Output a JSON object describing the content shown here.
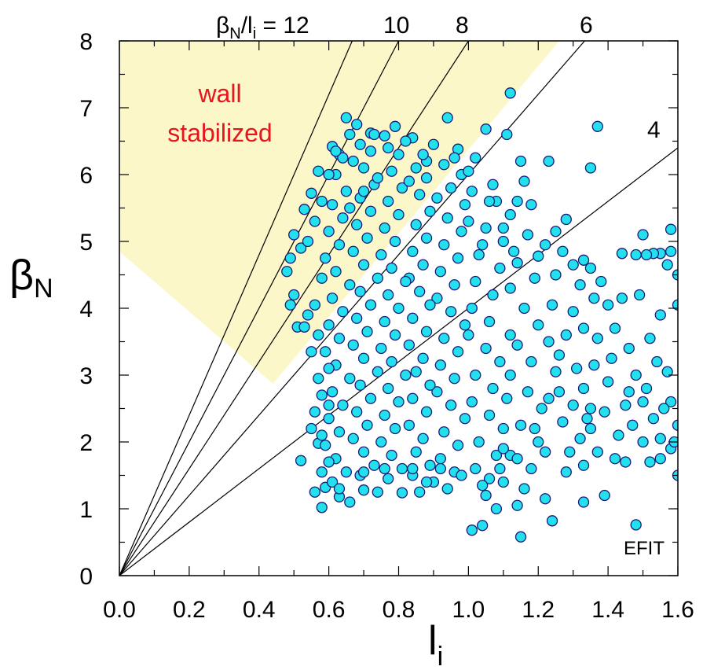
{
  "chart_data": {
    "type": "scatter",
    "xlabel": "l",
    "xlabel_sub": "i",
    "ylabel": "β",
    "ylabel_sub": "N",
    "xlim": [
      0,
      1.6
    ],
    "ylim": [
      0,
      8
    ],
    "x_ticks": [
      "0.0",
      "0.2",
      "0.4",
      "0.6",
      "0.8",
      "1.0",
      "1.2",
      "1.4",
      "1.6"
    ],
    "y_ticks": [
      "0",
      "1",
      "2",
      "3",
      "4",
      "5",
      "6",
      "7",
      "8"
    ],
    "ratio_title": {
      "beta": "β",
      "beta_sub": "N",
      "slash": "/l",
      "li_sub": "i",
      "eq": " = 12"
    },
    "ratio_lines": [
      {
        "slope": 12,
        "label": "",
        "end": [
          0.667,
          8
        ]
      },
      {
        "slope": 10,
        "label": "10",
        "end": [
          0.8,
          8
        ]
      },
      {
        "slope": 8,
        "label": "8",
        "end": [
          1.0,
          8
        ]
      },
      {
        "slope": 6,
        "label": "6",
        "end": [
          1.333,
          8
        ]
      },
      {
        "slope": 4,
        "label": "4",
        "end": [
          1.6,
          6.4
        ]
      }
    ],
    "shaded_region": {
      "label_line1": "wall",
      "label_line2": "stabilized",
      "color": "#fbf7c8",
      "polygon": [
        [
          0,
          8
        ],
        [
          1.26,
          8
        ],
        [
          0.44,
          2.87
        ],
        [
          0,
          4.85
        ]
      ]
    },
    "method_label": "EFIT",
    "marker_color": "#22e0ec",
    "marker_edge": "#1a1a7a",
    "points": [
      [
        0.65,
        6.85
      ],
      [
        0.68,
        6.75
      ],
      [
        0.72,
        6.62
      ],
      [
        0.76,
        6.58
      ],
      [
        0.79,
        6.72
      ],
      [
        0.84,
        6.55
      ],
      [
        0.9,
        6.45
      ],
      [
        0.97,
        6.38
      ],
      [
        1.02,
        6.25
      ],
      [
        1.05,
        6.68
      ],
      [
        1.11,
        6.6
      ],
      [
        1.15,
        6.2
      ],
      [
        1.12,
        7.22
      ],
      [
        1.23,
        6.2
      ],
      [
        1.37,
        6.72
      ],
      [
        1.35,
        6.1
      ],
      [
        0.94,
        6.85
      ],
      [
        0.88,
        6.2
      ],
      [
        0.85,
        6.1
      ],
      [
        0.61,
        6.42
      ],
      [
        0.63,
        6.3
      ],
      [
        0.57,
        6.05
      ],
      [
        0.55,
        5.72
      ],
      [
        0.53,
        5.48
      ],
      [
        0.5,
        5.1
      ],
      [
        0.49,
        4.75
      ],
      [
        0.52,
        4.9
      ],
      [
        0.48,
        4.55
      ],
      [
        0.5,
        4.2
      ],
      [
        0.49,
        4.05
      ],
      [
        0.51,
        3.72
      ],
      [
        0.53,
        3.72
      ],
      [
        0.55,
        3.35
      ],
      [
        0.57,
        2.95
      ],
      [
        0.58,
        2.7
      ],
      [
        0.56,
        2.45
      ],
      [
        0.55,
        2.2
      ],
      [
        0.57,
        1.98
      ],
      [
        0.52,
        1.72
      ],
      [
        0.58,
        1.55
      ],
      [
        0.56,
        1.25
      ],
      [
        0.59,
        1.32
      ],
      [
        0.58,
        1.02
      ],
      [
        0.63,
        1.18
      ],
      [
        0.66,
        1.1
      ],
      [
        0.7,
        1.28
      ],
      [
        0.74,
        1.25
      ],
      [
        0.81,
        1.24
      ],
      [
        0.86,
        1.25
      ],
      [
        1.01,
        0.68
      ],
      [
        1.04,
        0.75
      ],
      [
        1.15,
        0.58
      ],
      [
        1.24,
        0.82
      ],
      [
        1.48,
        0.76
      ],
      [
        1.08,
        1.0
      ],
      [
        1.14,
        1.05
      ],
      [
        1.22,
        1.15
      ],
      [
        1.33,
        1.1
      ],
      [
        1.39,
        1.2
      ],
      [
        1.33,
        1.65
      ],
      [
        1.37,
        1.85
      ],
      [
        1.42,
        1.75
      ],
      [
        1.45,
        1.7
      ],
      [
        1.52,
        1.7
      ],
      [
        1.55,
        1.75
      ],
      [
        1.58,
        1.9
      ],
      [
        1.6,
        1.5
      ],
      [
        1.6,
        2.25
      ],
      [
        1.58,
        2.6
      ],
      [
        1.57,
        3.05
      ],
      [
        1.54,
        3.2
      ],
      [
        1.52,
        3.55
      ],
      [
        1.55,
        3.9
      ],
      [
        1.6,
        4.05
      ],
      [
        1.6,
        4.5
      ],
      [
        1.57,
        4.65
      ],
      [
        1.58,
        4.85
      ],
      [
        1.55,
        4.82
      ],
      [
        1.53,
        4.82
      ],
      [
        1.51,
        4.8
      ],
      [
        1.48,
        4.8
      ],
      [
        1.44,
        4.82
      ],
      [
        1.58,
        5.18
      ],
      [
        1.5,
        5.1
      ],
      [
        1.49,
        4.2
      ],
      [
        1.38,
        4.4
      ],
      [
        1.4,
        4.05
      ],
      [
        1.42,
        3.7
      ],
      [
        1.37,
        3.55
      ],
      [
        1.36,
        3.15
      ],
      [
        1.4,
        2.9
      ],
      [
        1.45,
        2.55
      ],
      [
        1.47,
        2.25
      ],
      [
        1.5,
        2.0
      ],
      [
        1.43,
        2.1
      ],
      [
        1.46,
        2.75
      ],
      [
        1.48,
        3.0
      ],
      [
        1.5,
        2.6
      ],
      [
        1.53,
        2.35
      ],
      [
        1.55,
        2.05
      ],
      [
        1.35,
        2.5
      ],
      [
        1.28,
        5.33
      ],
      [
        1.25,
        5.15
      ],
      [
        1.3,
        4.65
      ],
      [
        1.33,
        4.72
      ],
      [
        1.32,
        4.35
      ],
      [
        1.25,
        4.5
      ],
      [
        1.24,
        4.05
      ],
      [
        1.3,
        3.95
      ],
      [
        1.28,
        3.6
      ],
      [
        1.26,
        3.3
      ],
      [
        1.31,
        3.1
      ],
      [
        1.33,
        2.8
      ],
      [
        1.3,
        2.55
      ],
      [
        1.27,
        2.3
      ],
      [
        1.32,
        2.05
      ],
      [
        1.29,
        1.85
      ],
      [
        1.35,
        2.2
      ],
      [
        1.17,
        5.1
      ],
      [
        1.2,
        4.78
      ],
      [
        1.14,
        4.68
      ],
      [
        1.19,
        4.45
      ],
      [
        1.12,
        4.3
      ],
      [
        1.16,
        4.0
      ],
      [
        1.2,
        3.75
      ],
      [
        1.14,
        3.45
      ],
      [
        1.18,
        3.2
      ],
      [
        1.12,
        3.0
      ],
      [
        1.17,
        2.75
      ],
      [
        1.21,
        2.5
      ],
      [
        1.15,
        2.25
      ],
      [
        1.2,
        2.0
      ],
      [
        1.12,
        1.8
      ],
      [
        1.18,
        1.6
      ],
      [
        1.1,
        1.4
      ],
      [
        1.16,
        1.3
      ],
      [
        1.05,
        1.2
      ],
      [
        1.08,
        5.6
      ],
      [
        1.12,
        5.4
      ],
      [
        1.05,
        5.2
      ],
      [
        1.1,
        5.0
      ],
      [
        1.03,
        4.8
      ],
      [
        1.09,
        4.6
      ],
      [
        1.02,
        4.4
      ],
      [
        1.07,
        4.2
      ],
      [
        1.01,
        4.0
      ],
      [
        1.06,
        3.8
      ],
      [
        1.0,
        3.6
      ],
      [
        1.05,
        3.4
      ],
      [
        1.09,
        3.2
      ],
      [
        1.02,
        3.0
      ],
      [
        1.07,
        2.8
      ],
      [
        1.01,
        2.6
      ],
      [
        1.06,
        2.4
      ],
      [
        1.1,
        2.2
      ],
      [
        1.03,
        2.0
      ],
      [
        1.08,
        1.8
      ],
      [
        1.02,
        1.6
      ],
      [
        1.06,
        1.45
      ],
      [
        1.1,
        1.9
      ],
      [
        1.11,
        2.65
      ],
      [
        1.12,
        3.6
      ],
      [
        0.98,
        6.0
      ],
      [
        0.95,
        5.8
      ],
      [
        0.99,
        5.55
      ],
      [
        0.94,
        5.35
      ],
      [
        0.98,
        5.15
      ],
      [
        0.93,
        4.95
      ],
      [
        0.97,
        4.75
      ],
      [
        0.92,
        4.55
      ],
      [
        0.96,
        4.35
      ],
      [
        0.91,
        4.15
      ],
      [
        0.95,
        3.95
      ],
      [
        0.99,
        3.75
      ],
      [
        0.93,
        3.55
      ],
      [
        0.97,
        3.35
      ],
      [
        0.92,
        3.15
      ],
      [
        0.96,
        2.95
      ],
      [
        0.91,
        2.75
      ],
      [
        0.95,
        2.55
      ],
      [
        0.99,
        2.35
      ],
      [
        0.93,
        2.15
      ],
      [
        0.97,
        1.95
      ],
      [
        0.92,
        1.75
      ],
      [
        0.96,
        1.55
      ],
      [
        0.9,
        1.4
      ],
      [
        0.94,
        1.3
      ],
      [
        0.88,
        5.95
      ],
      [
        0.86,
        5.7
      ],
      [
        0.89,
        5.45
      ],
      [
        0.85,
        5.25
      ],
      [
        0.88,
        5.05
      ],
      [
        0.84,
        4.85
      ],
      [
        0.87,
        4.65
      ],
      [
        0.83,
        4.45
      ],
      [
        0.86,
        4.25
      ],
      [
        0.89,
        4.05
      ],
      [
        0.84,
        3.85
      ],
      [
        0.88,
        3.65
      ],
      [
        0.83,
        3.45
      ],
      [
        0.87,
        3.25
      ],
      [
        0.85,
        3.05
      ],
      [
        0.89,
        2.85
      ],
      [
        0.84,
        2.65
      ],
      [
        0.88,
        2.45
      ],
      [
        0.83,
        2.25
      ],
      [
        0.87,
        2.05
      ],
      [
        0.85,
        1.85
      ],
      [
        0.89,
        1.65
      ],
      [
        0.84,
        1.5
      ],
      [
        0.88,
        1.4
      ],
      [
        0.8,
        6.3
      ],
      [
        0.78,
        6.05
      ],
      [
        0.81,
        5.8
      ],
      [
        0.77,
        5.6
      ],
      [
        0.8,
        5.4
      ],
      [
        0.76,
        5.2
      ],
      [
        0.79,
        5.0
      ],
      [
        0.75,
        4.8
      ],
      [
        0.78,
        4.6
      ],
      [
        0.82,
        4.4
      ],
      [
        0.77,
        4.2
      ],
      [
        0.8,
        4.0
      ],
      [
        0.76,
        3.8
      ],
      [
        0.79,
        3.6
      ],
      [
        0.75,
        3.4
      ],
      [
        0.78,
        3.2
      ],
      [
        0.82,
        3.0
      ],
      [
        0.77,
        2.8
      ],
      [
        0.8,
        2.6
      ],
      [
        0.76,
        2.4
      ],
      [
        0.79,
        2.2
      ],
      [
        0.75,
        2.0
      ],
      [
        0.78,
        1.8
      ],
      [
        0.81,
        1.6
      ],
      [
        0.77,
        1.45
      ],
      [
        0.72,
        6.35
      ],
      [
        0.7,
        6.1
      ],
      [
        0.73,
        5.85
      ],
      [
        0.69,
        5.65
      ],
      [
        0.72,
        5.45
      ],
      [
        0.68,
        5.25
      ],
      [
        0.71,
        5.05
      ],
      [
        0.67,
        4.85
      ],
      [
        0.7,
        4.65
      ],
      [
        0.74,
        4.45
      ],
      [
        0.69,
        4.25
      ],
      [
        0.72,
        4.05
      ],
      [
        0.68,
        3.85
      ],
      [
        0.71,
        3.65
      ],
      [
        0.67,
        3.45
      ],
      [
        0.7,
        3.25
      ],
      [
        0.74,
        3.05
      ],
      [
        0.69,
        2.85
      ],
      [
        0.72,
        2.65
      ],
      [
        0.68,
        2.45
      ],
      [
        0.71,
        2.25
      ],
      [
        0.67,
        2.05
      ],
      [
        0.7,
        1.85
      ],
      [
        0.73,
        1.65
      ],
      [
        0.69,
        1.5
      ],
      [
        0.64,
        6.25
      ],
      [
        0.62,
        6.0
      ],
      [
        0.65,
        5.75
      ],
      [
        0.61,
        5.55
      ],
      [
        0.64,
        5.35
      ],
      [
        0.6,
        5.15
      ],
      [
        0.63,
        4.95
      ],
      [
        0.59,
        4.75
      ],
      [
        0.62,
        4.55
      ],
      [
        0.66,
        4.35
      ],
      [
        0.61,
        4.15
      ],
      [
        0.64,
        3.95
      ],
      [
        0.6,
        3.75
      ],
      [
        0.63,
        3.55
      ],
      [
        0.59,
        3.35
      ],
      [
        0.62,
        3.15
      ],
      [
        0.66,
        2.95
      ],
      [
        0.61,
        2.75
      ],
      [
        0.64,
        2.55
      ],
      [
        0.6,
        2.35
      ],
      [
        0.63,
        2.15
      ],
      [
        0.59,
        1.95
      ],
      [
        0.62,
        1.75
      ],
      [
        0.65,
        1.55
      ],
      [
        0.61,
        1.4
      ],
      [
        0.74,
        5.95
      ],
      [
        0.83,
        5.9
      ],
      [
        0.91,
        5.65
      ],
      [
        1.0,
        5.3
      ],
      [
        1.04,
        4.95
      ],
      [
        1.13,
        4.85
      ],
      [
        1.18,
        5.55
      ],
      [
        1.22,
        4.95
      ],
      [
        1.27,
        4.85
      ],
      [
        1.35,
        4.6
      ],
      [
        1.23,
        3.5
      ],
      [
        1.26,
        2.75
      ],
      [
        1.22,
        1.85
      ],
      [
        1.28,
        1.55
      ],
      [
        1.34,
        2.35
      ],
      [
        1.39,
        2.45
      ],
      [
        1.41,
        3.25
      ],
      [
        1.33,
        3.7
      ],
      [
        1.36,
        4.15
      ],
      [
        1.44,
        4.15
      ],
      [
        1.46,
        3.4
      ],
      [
        1.51,
        2.8
      ],
      [
        1.56,
        2.5
      ],
      [
        1.59,
        2.0
      ],
      [
        0.7,
        5.75
      ],
      [
        0.66,
        5.5
      ],
      [
        0.58,
        5.6
      ],
      [
        0.56,
        5.3
      ],
      [
        0.54,
        5.0
      ],
      [
        0.58,
        4.45
      ],
      [
        0.56,
        4.05
      ],
      [
        0.54,
        3.9
      ],
      [
        0.57,
        3.6
      ],
      [
        0.6,
        3.1
      ],
      [
        0.6,
        2.55
      ],
      [
        0.58,
        2.1
      ],
      [
        0.6,
        1.7
      ],
      [
        0.63,
        1.3
      ],
      [
        0.7,
        1.55
      ],
      [
        0.76,
        1.6
      ],
      [
        0.84,
        1.6
      ],
      [
        0.92,
        1.6
      ],
      [
        0.98,
        1.5
      ],
      [
        1.04,
        1.35
      ],
      [
        1.09,
        1.6
      ],
      [
        1.14,
        1.75
      ],
      [
        1.19,
        2.2
      ],
      [
        1.23,
        2.65
      ],
      [
        1.25,
        3.05
      ],
      [
        0.82,
        6.5
      ],
      [
        0.87,
        6.3
      ],
      [
        0.93,
        6.15
      ],
      [
        1.0,
        6.05
      ],
      [
        0.96,
        6.25
      ],
      [
        1.07,
        5.85
      ],
      [
        1.14,
        5.6
      ],
      [
        1.16,
        5.9
      ],
      [
        1.1,
        5.2
      ],
      [
        1.06,
        5.6
      ],
      [
        1.01,
        5.75
      ],
      [
        0.73,
        6.6
      ],
      [
        0.77,
        6.4
      ],
      [
        0.69,
        6.45
      ],
      [
        0.66,
        6.6
      ],
      [
        0.62,
        6.35
      ],
      [
        0.6,
        6.0
      ],
      [
        0.67,
        6.2
      ]
    ]
  }
}
